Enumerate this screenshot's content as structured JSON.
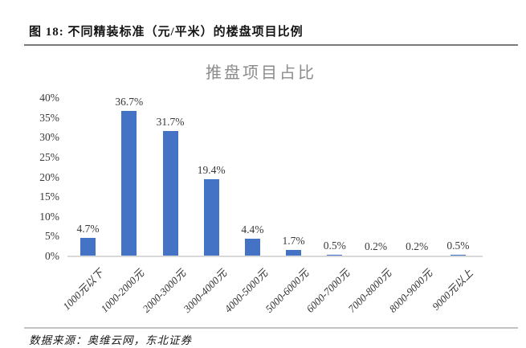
{
  "figure": {
    "caption": "图 18: 不同精装标准（元/平米）的楼盘项目比例",
    "source": "数据来源：奥维云网，东北证券"
  },
  "chart_data": {
    "type": "bar",
    "title": "推盘项目占比",
    "categories": [
      "1000元以下",
      "1000-2000元",
      "2000-3000元",
      "3000-4000元",
      "4000-5000元",
      "5000-6000元",
      "6000-7000元",
      "7000-8000元",
      "8000-9000元",
      "9000元以上"
    ],
    "values": [
      4.7,
      36.7,
      31.7,
      19.4,
      4.4,
      1.7,
      0.5,
      0.2,
      0.2,
      0.5
    ],
    "data_labels": [
      "4.7%",
      "36.7%",
      "31.7%",
      "19.4%",
      "4.4%",
      "1.7%",
      "0.5%",
      "0.2%",
      "0.2%",
      "0.5%"
    ],
    "yticks": [
      "0%",
      "5%",
      "10%",
      "15%",
      "20%",
      "25%",
      "30%",
      "35%",
      "40%"
    ],
    "ytick_values": [
      0,
      5,
      10,
      15,
      20,
      25,
      30,
      35,
      40
    ],
    "ylim": [
      0,
      40
    ],
    "grid": false,
    "legend_position": "none",
    "bar_color": "#4472c4",
    "bar_color_light": "#abc0e8",
    "light_bar_indices": [
      7,
      8
    ],
    "title_color": "#8c8c8c",
    "axis_line_color": "#d9d9d9",
    "label_color": "#3a3a3a"
  }
}
